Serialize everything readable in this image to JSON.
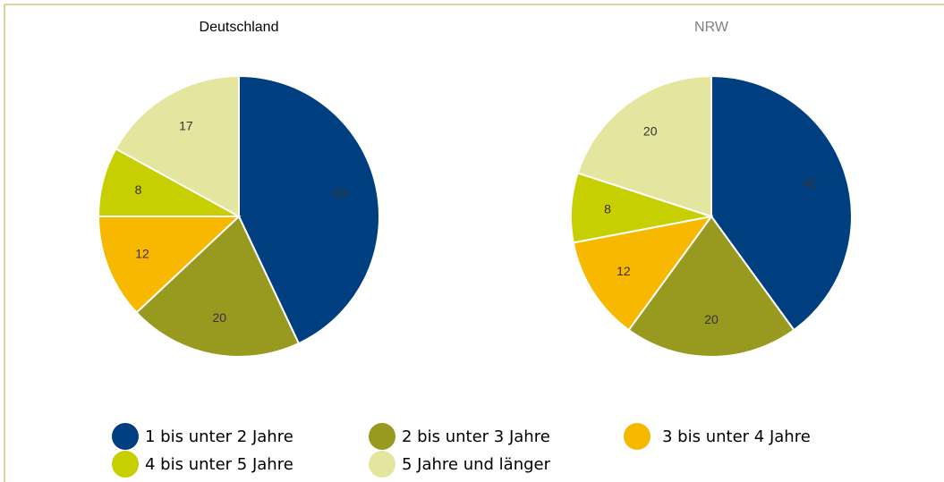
{
  "chart_data": [
    {
      "type": "pie",
      "title": "Deutschland",
      "title_color": "#000000",
      "categories": [
        "1 bis unter 2 Jahre",
        "2 bis unter 3 Jahre",
        "3 bis unter 4 Jahre",
        "4 bis unter 5 Jahre",
        "5 Jahre und länger"
      ],
      "values": [
        43,
        20,
        12,
        8,
        17
      ],
      "colors": [
        "#003f7f",
        "#98991f",
        "#f9b800",
        "#c8cf00",
        "#e4e59f"
      ]
    },
    {
      "type": "pie",
      "title": "NRW",
      "title_color": "#7f7f7f",
      "categories": [
        "1 bis unter 2 Jahre",
        "2 bis unter 3 Jahre",
        "3 bis unter 4 Jahre",
        "4 bis unter 5 Jahre",
        "5 Jahre und länger"
      ],
      "values": [
        40,
        20,
        12,
        8,
        20
      ],
      "colors": [
        "#003f7f",
        "#98991f",
        "#f9b800",
        "#c8cf00",
        "#e4e59f"
      ]
    }
  ]
}
